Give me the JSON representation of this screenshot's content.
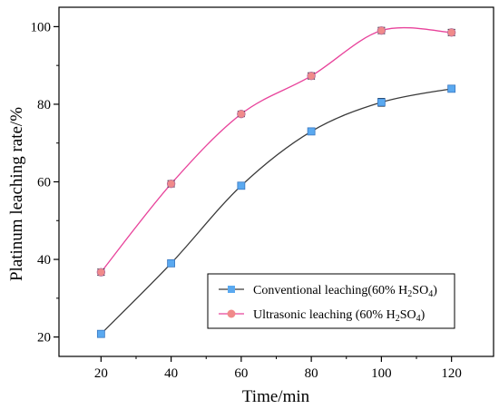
{
  "chart_data": {
    "type": "line",
    "xlabel": "Time/min",
    "ylabel": "Platinum leaching rate/%",
    "x": [
      20,
      40,
      60,
      80,
      100,
      120
    ],
    "xlim": [
      8,
      132
    ],
    "ylim": [
      15,
      105
    ],
    "xticks": [
      20,
      40,
      60,
      80,
      100,
      120
    ],
    "yticks": [
      20,
      40,
      60,
      80,
      100
    ],
    "grid": false,
    "legend_position": "lower-right",
    "series": [
      {
        "name": "Conventional leaching(60% H2SO4)",
        "legend": {
          "prefix": "Conventional leaching(60% H",
          "sub1": "2",
          "mid": "SO",
          "sub2": "4",
          "suffix": ")"
        },
        "values": [
          20.8,
          39.0,
          59.0,
          73.0,
          80.5,
          84.0
        ],
        "error": [
          0.8,
          0.8,
          0.7,
          0.6,
          1.0,
          0.8
        ],
        "line_color": "#3a3a3a",
        "marker_color": "#5aa9f0",
        "marker": "square"
      },
      {
        "name": "Ultrasonic leaching (60% H2SO4)",
        "legend": {
          "prefix": "Ultrasonic leaching (60% H",
          "sub1": "2",
          "mid": "SO",
          "sub2": "4",
          "suffix": ")"
        },
        "values": [
          36.7,
          59.5,
          77.5,
          87.3,
          99.0,
          98.5
        ],
        "error": [
          0.8,
          0.8,
          0.7,
          0.8,
          0.8,
          0.8
        ],
        "line_color": "#e8439b",
        "marker_color": "#f08a8a",
        "marker": "circle"
      }
    ]
  }
}
